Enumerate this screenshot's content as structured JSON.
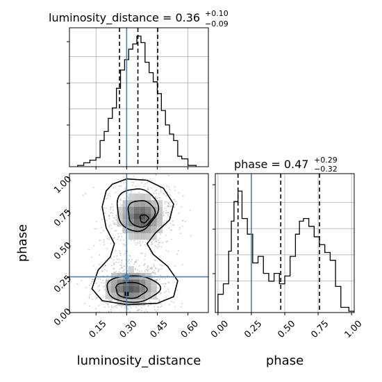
{
  "chart_data": {
    "type": "corner",
    "parameters": [
      "luminosity_distance",
      "phase"
    ],
    "truth_color": "#4682b4",
    "truths": {
      "luminosity_distance": 0.3,
      "phase": 0.25
    },
    "panels": [
      {
        "panel": "hist-luminosity_distance",
        "type": "histogram-step",
        "title": {
          "main": "luminosity_distance = 0.36",
          "sup": "+0.10",
          "sub": "−0.09"
        },
        "xlim": [
          0.02,
          0.7
        ],
        "ylim": [
          0,
          100
        ],
        "grid": true,
        "quantile_lines": [
          0.265,
          0.355,
          0.452
        ],
        "bin_edges": [
          0.06,
          0.09,
          0.12,
          0.15,
          0.17,
          0.19,
          0.21,
          0.23,
          0.25,
          0.27,
          0.29,
          0.31,
          0.33,
          0.35,
          0.37,
          0.39,
          0.41,
          0.43,
          0.45,
          0.47,
          0.49,
          0.51,
          0.53,
          0.55,
          0.57,
          0.6,
          0.64
        ],
        "counts": [
          1,
          3,
          5,
          7,
          20,
          27,
          37,
          45,
          60,
          74,
          82,
          90,
          94,
          100,
          95,
          80,
          72,
          65,
          56,
          43,
          32,
          25,
          20,
          8,
          6,
          1
        ]
      },
      {
        "panel": "hist-phase",
        "type": "histogram-step",
        "title": {
          "main": "phase = 0.47",
          "sup": "+0.29",
          "sub": "−0.32"
        },
        "xlim": [
          -0.02,
          1.02
        ],
        "ylim": [
          0,
          100
        ],
        "grid": true,
        "quantile_lines": [
          0.15,
          0.47,
          0.76
        ],
        "bin_edges": [
          0.0,
          0.04,
          0.08,
          0.1,
          0.12,
          0.15,
          0.18,
          0.22,
          0.26,
          0.3,
          0.34,
          0.38,
          0.42,
          0.46,
          0.5,
          0.54,
          0.58,
          0.61,
          0.64,
          0.68,
          0.72,
          0.76,
          0.8,
          0.84,
          0.88,
          0.92,
          0.98,
          1.02
        ],
        "counts": [
          14,
          22,
          47,
          70,
          85,
          93,
          72,
          60,
          38,
          43,
          30,
          24,
          30,
          22,
          28,
          43,
          60,
          70,
          72,
          66,
          58,
          52,
          46,
          40,
          20,
          4,
          1
        ]
      },
      {
        "panel": "2d-phase-vs-luminosity_distance",
        "type": "2d-density-contour",
        "xlim": [
          0.02,
          0.7
        ],
        "ylim": [
          -0.02,
          1.03
        ],
        "xticks": [
          "0.15",
          "0.30",
          "0.45",
          "0.60"
        ],
        "yticks": [
          "0.00",
          "0.25",
          "0.50",
          "0.75",
          "1.00"
        ],
        "xlabel": "luminosity_distance",
        "ylabel": "phase",
        "modes": [
          {
            "x": 0.37,
            "y": 0.7
          },
          {
            "x": 0.32,
            "y": 0.17
          }
        ]
      }
    ],
    "axes": {
      "phase_x": {
        "xticks": [
          "0.00",
          "0.25",
          "0.50",
          "0.75",
          "1.00"
        ],
        "xlabel": "phase"
      }
    }
  }
}
